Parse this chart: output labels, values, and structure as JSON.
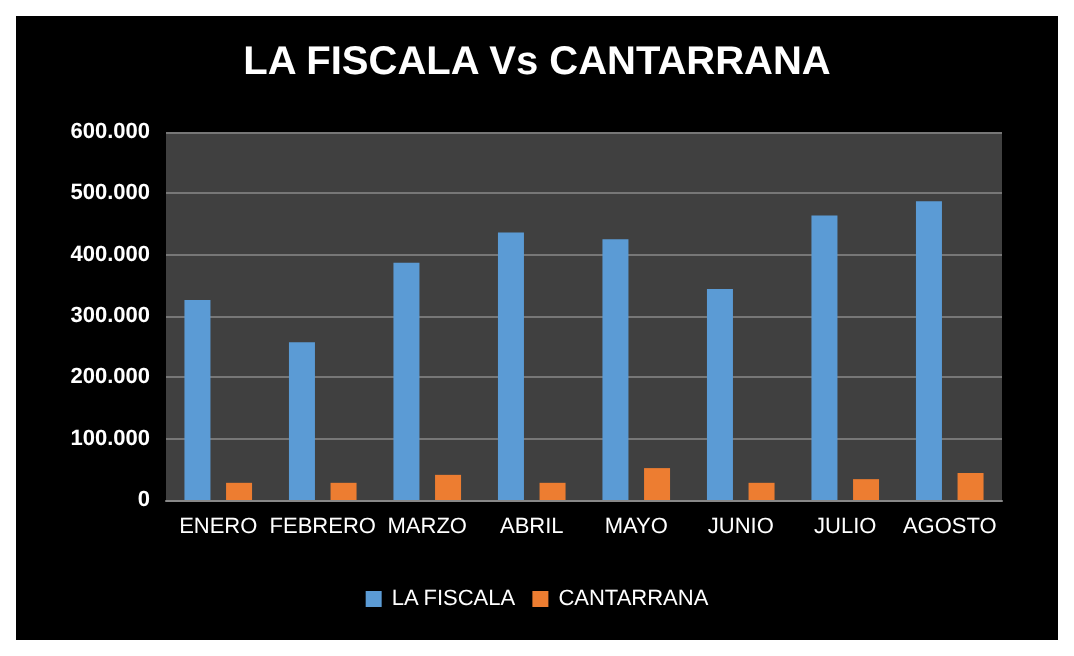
{
  "chart_data": {
    "type": "bar",
    "title": "LA FISCALA Vs CANTARRANA",
    "categories": [
      "ENERO",
      "FEBRERO",
      "MARZO",
      "ABRIL",
      "MAYO",
      "JUNIO",
      "JULIO",
      "AGOSTO"
    ],
    "series": [
      {
        "name": "LA FISCALA",
        "color": "#5b9bd5",
        "values": [
          326000,
          257000,
          387000,
          436000,
          425000,
          344000,
          464000,
          487000
        ]
      },
      {
        "name": "CANTARRANA",
        "color": "#ed7d31",
        "values": [
          28000,
          28000,
          41000,
          28000,
          52000,
          28000,
          34000,
          44000
        ]
      }
    ],
    "ylim": [
      0,
      600000
    ],
    "yticks": [
      {
        "value": 0,
        "label": "0"
      },
      {
        "value": 100000,
        "label": "100.000"
      },
      {
        "value": 200000,
        "label": "200.000"
      },
      {
        "value": 300000,
        "label": "300.000"
      },
      {
        "value": 400000,
        "label": "400.000"
      },
      {
        "value": 500000,
        "label": "500.000"
      },
      {
        "value": 600000,
        "label": "600.000"
      }
    ],
    "grid": true,
    "legend": "bottom"
  }
}
